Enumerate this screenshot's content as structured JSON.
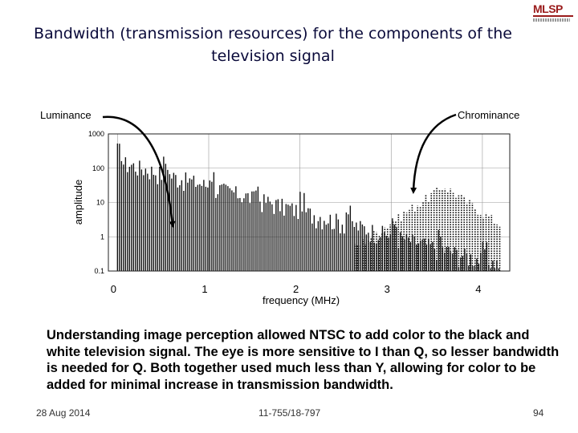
{
  "slide": {
    "title": "Bandwidth (transmission resources) for the components of the television signal",
    "logo_text": "MLSP",
    "caption": "Understanding image perception allowed NTSC to add color to the black and white television signal. The eye is more sensitive to I than Q, so lesser bandwidth is needed for Q. Both together used much less than Y, allowing for color to be added for minimal increase in transmission bandwidth.",
    "footer": {
      "date": "28 Aug 2014",
      "course": "11-755/18-797",
      "page": "94"
    }
  },
  "annotations": {
    "luminance": "Luminance",
    "chrominance": "Chrominance"
  },
  "chart_data": {
    "type": "bar",
    "title": "",
    "xlabel": "frequency (MHz)",
    "ylabel": "amplitude",
    "y_scale": "log",
    "ylim": [
      0.1,
      1000
    ],
    "xlim": [
      -0.1,
      4.3
    ],
    "x_ticks": [
      "0",
      "1",
      "2",
      "3",
      "4"
    ],
    "y_ticks": [
      "0.1",
      "1",
      "10",
      "100",
      "1000"
    ],
    "grid": true,
    "colors": {
      "bars": "#111111",
      "grid": "#999999",
      "arrow": "#000000"
    },
    "series": [
      {
        "name": "Luminance",
        "values_description": "dense spectral lines decaying from about 250 near 0 MHz to about 0.5 near 4.2 MHz"
      },
      {
        "name": "Chrominance",
        "peak_x": 3.58,
        "peak_value": 40
      }
    ]
  }
}
